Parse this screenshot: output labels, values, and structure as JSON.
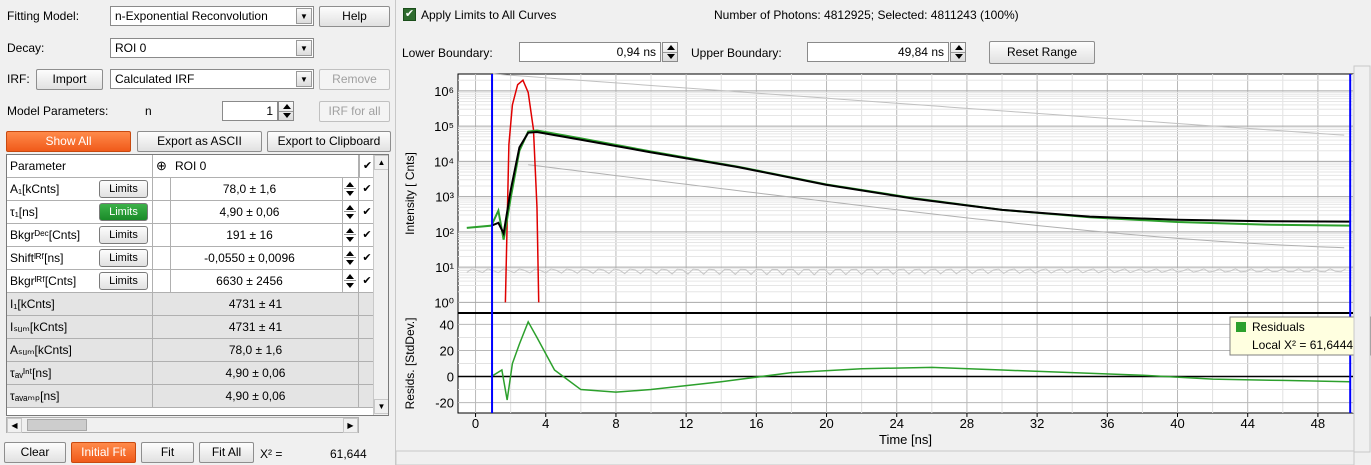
{
  "left": {
    "fitting_model_label": "Fitting Model:",
    "fitting_model_value": "n-Exponential Reconvolution",
    "help_label": "Help",
    "decay_label": "Decay:",
    "decay_value": "ROI 0",
    "irf_label": "IRF:",
    "import_label": "Import",
    "irf_value": "Calculated IRF",
    "remove_label": "Remove",
    "model_params_label": "Model Parameters:",
    "n_label": "n",
    "n_value": "1",
    "irf_for_all_label": "IRF for all",
    "show_all_label": "Show All",
    "export_ascii_label": "Export as ASCII",
    "export_clipboard_label": "Export to Clipboard",
    "table_header_param": "Parameter",
    "table_header_roi": "ROI 0",
    "header_check": "✔",
    "limits_label": "Limits",
    "params": [
      {
        "name": "A₁[kCnts]",
        "value": "78,0 ± 1,6",
        "limits_active": false,
        "check": "✔"
      },
      {
        "name": "τ₁[ns]",
        "value": "4,90 ± 0,06",
        "limits_active": true,
        "check": "✔"
      },
      {
        "name": "Bkgrᴰᵉᶜ[Cnts]",
        "value": "191 ± 16",
        "limits_active": false,
        "check": "✔"
      },
      {
        "name": "Shiftᴵᴿᶠ[ns]",
        "value": "-0,0550 ± 0,0096",
        "limits_active": false,
        "check": "✔"
      },
      {
        "name": "Bkgrᴵᴿᶠ[Cnts]",
        "value": "6630 ± 2456",
        "limits_active": false,
        "check": "✔"
      }
    ],
    "calc_params": [
      {
        "name": "I₁[kCnts]",
        "value": "4731 ± 41"
      },
      {
        "name": "Iₛᵤₘ[kCnts]",
        "value": "4731 ± 41"
      },
      {
        "name": "Aₛᵤₘ[kCnts]",
        "value": "78,0 ± 1,6"
      },
      {
        "name": "τₐᵥᴵⁿᵗ[ns]",
        "value": "4,90 ± 0,06"
      },
      {
        "name": "τₐᵥₐₘₚ[ns]",
        "value": "4,90 ± 0,06"
      }
    ],
    "clear_label": "Clear",
    "initial_fit_label": "Initial Fit",
    "fit_label": "Fit",
    "fit_all_label": "Fit All",
    "chi2_label": "X² =",
    "chi2_value": "61,644"
  },
  "right": {
    "apply_limits_label": "Apply Limits to All Curves",
    "photons_text": "Number of Photons: 4812925; Selected: 4811243 (100%)",
    "lower_boundary_label": "Lower Boundary:",
    "lower_boundary_value": "0,94 ns",
    "upper_boundary_label": "Upper Boundary:",
    "upper_boundary_value": "49,84 ns",
    "reset_range_label": "Reset Range"
  },
  "chart_data": {
    "type": "line",
    "xlabel": "Time [ns]",
    "ylabel_top": "Intensity [ Cnts]",
    "ylabel_bottom": "Resids. [StdDev.]",
    "xlim": [
      -1,
      50
    ],
    "xticks": [
      0,
      4,
      8,
      12,
      16,
      20,
      24,
      28,
      32,
      36,
      40,
      44,
      48
    ],
    "top_yscale": "log",
    "top_ylim": [
      0.5,
      3000000
    ],
    "top_yticks": [
      "10⁰",
      "10¹",
      "10²",
      "10³",
      "10⁴",
      "10⁵",
      "10⁶"
    ],
    "bottom_ylim": [
      -28,
      48
    ],
    "bottom_yticks": [
      -20,
      0,
      20,
      40
    ],
    "grid": true,
    "legend_placement": "right",
    "legend_label": "Residuals",
    "legend_text": "Local X² = 61,6444",
    "boundaries_ns": [
      0.94,
      49.84
    ],
    "colors": {
      "irf": "#e00000",
      "decay": "#2ca02c",
      "fit": "#000000",
      "gray": "#9a9a9a",
      "residual": "#2ca02c",
      "boundary": "#0000ff"
    },
    "series": [
      {
        "name": "IRF",
        "x": [
          1.7,
          1.9,
          2.1,
          2.4,
          2.7,
          3.0,
          3.3,
          3.5,
          3.6
        ],
        "y": [
          1,
          30000,
          400000,
          1500000,
          2000000,
          900000,
          80000,
          500,
          1
        ]
      },
      {
        "name": "Decay",
        "x": [
          -0.5,
          0.9,
          1.3,
          1.6,
          2.0,
          2.5,
          3.0,
          3.5,
          6,
          10,
          15,
          20,
          25,
          30,
          35,
          40,
          45,
          49.8
        ],
        "y": [
          130,
          150,
          400,
          60,
          900,
          20000,
          70000,
          75000,
          45000,
          19000,
          7000,
          2200,
          900,
          420,
          260,
          190,
          160,
          150
        ]
      },
      {
        "name": "Fit",
        "x": [
          0.9,
          1.3,
          1.6,
          2.0,
          2.5,
          3.0,
          3.5,
          6,
          10,
          15,
          20,
          25,
          30,
          35,
          40,
          45,
          49.8
        ],
        "y": [
          150,
          180,
          90,
          1500,
          25000,
          65000,
          68000,
          41000,
          18000,
          6800,
          2150,
          870,
          420,
          270,
          220,
          200,
          195
        ]
      },
      {
        "name": "Residuals",
        "x": [
          0.9,
          1.5,
          1.8,
          2.1,
          2.5,
          3.0,
          3.5,
          4.5,
          6,
          8,
          10,
          14,
          18,
          22,
          26,
          30,
          34,
          38,
          42,
          46,
          49.8
        ],
        "y": [
          0,
          5,
          -18,
          10,
          25,
          42,
          30,
          5,
          -10,
          -12,
          -10,
          -4,
          3,
          6,
          7,
          5,
          3,
          1,
          -2,
          -3,
          -4
        ]
      }
    ]
  }
}
